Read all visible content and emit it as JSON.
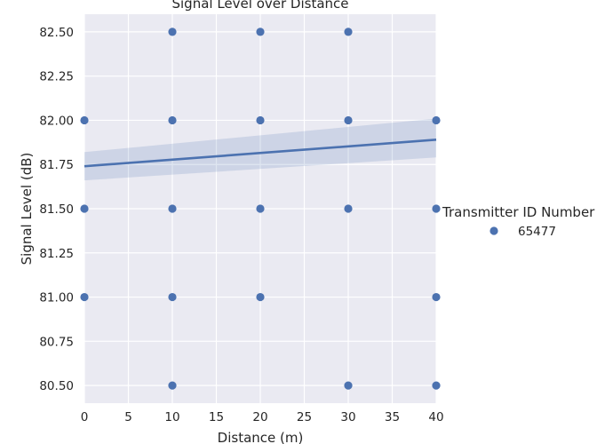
{
  "chart_data": {
    "type": "scatter",
    "title": "Signal Level over Distance",
    "xlabel": "Distance (m)",
    "ylabel": "Signal Level (dB)",
    "xlim": [
      0,
      40
    ],
    "ylim": [
      80.4,
      82.6
    ],
    "x_ticks": [
      0,
      5,
      10,
      15,
      20,
      25,
      30,
      35,
      40
    ],
    "y_ticks": [
      "80.50",
      "80.75",
      "81.00",
      "81.25",
      "81.50",
      "81.75",
      "82.00",
      "82.25",
      "82.50"
    ],
    "grid": true,
    "legend_position": "right",
    "legend_title": "Transmitter ID Number",
    "series": [
      {
        "name": "65477",
        "color": "#4c72b0",
        "points": [
          [
            0,
            82.0
          ],
          [
            0,
            81.5
          ],
          [
            0,
            81.0
          ],
          [
            10,
            82.5
          ],
          [
            10,
            82.0
          ],
          [
            10,
            81.5
          ],
          [
            10,
            81.0
          ],
          [
            10,
            80.5
          ],
          [
            20,
            82.5
          ],
          [
            20,
            82.0
          ],
          [
            20,
            81.5
          ],
          [
            20,
            81.0
          ],
          [
            30,
            82.5
          ],
          [
            30,
            82.0
          ],
          [
            30,
            81.5
          ],
          [
            30,
            80.5
          ],
          [
            40,
            82.0
          ],
          [
            40,
            81.5
          ],
          [
            40,
            81.0
          ],
          [
            40,
            80.5
          ]
        ]
      }
    ],
    "regression": {
      "x": [
        0,
        40
      ],
      "y": [
        81.74,
        81.89
      ],
      "ci_lower": [
        81.66,
        81.79
      ],
      "ci_upper": [
        81.82,
        82.01
      ],
      "color": "#4c72b0"
    }
  }
}
